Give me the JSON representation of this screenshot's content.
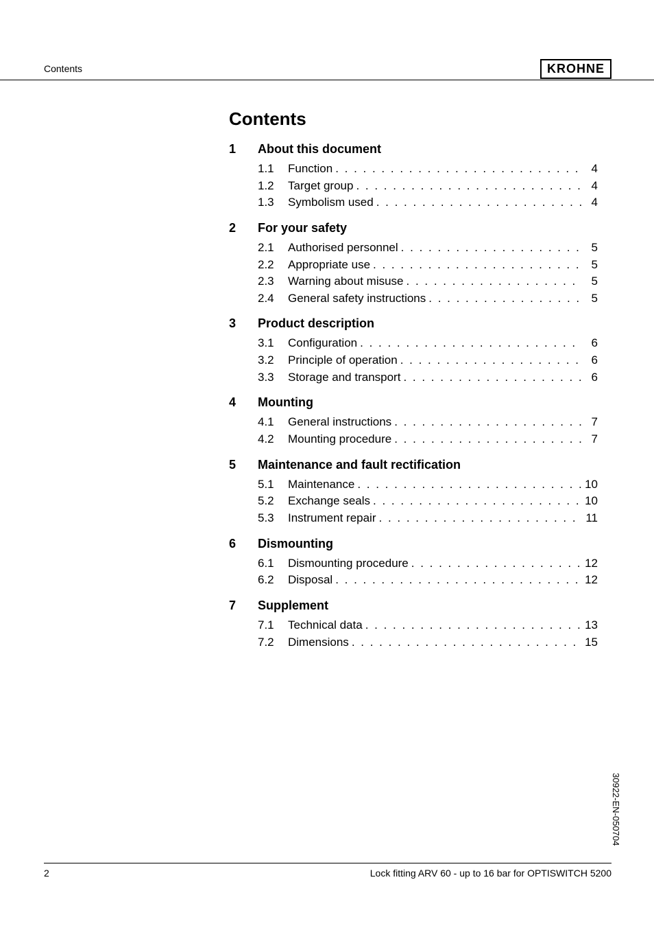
{
  "header": {
    "left": "Contents",
    "logo": "KROHNE"
  },
  "title": "Contents",
  "sections": [
    {
      "num": "1",
      "title": "About this document",
      "items": [
        {
          "num": "1.1",
          "label": "Function",
          "page": "4"
        },
        {
          "num": "1.2",
          "label": "Target group",
          "page": "4"
        },
        {
          "num": "1.3",
          "label": "Symbolism used",
          "page": "4"
        }
      ]
    },
    {
      "num": "2",
      "title": "For your safety",
      "items": [
        {
          "num": "2.1",
          "label": "Authorised personnel",
          "page": "5"
        },
        {
          "num": "2.2",
          "label": "Appropriate use",
          "page": "5"
        },
        {
          "num": "2.3",
          "label": "Warning about misuse",
          "page": "5"
        },
        {
          "num": "2.4",
          "label": "General safety instructions",
          "page": "5"
        }
      ]
    },
    {
      "num": "3",
      "title": "Product description",
      "items": [
        {
          "num": "3.1",
          "label": "Configuration",
          "page": "6"
        },
        {
          "num": "3.2",
          "label": "Principle of operation",
          "page": "6"
        },
        {
          "num": "3.3",
          "label": "Storage and transport",
          "page": "6"
        }
      ]
    },
    {
      "num": "4",
      "title": "Mounting",
      "items": [
        {
          "num": "4.1",
          "label": "General instructions",
          "page": "7"
        },
        {
          "num": "4.2",
          "label": "Mounting procedure",
          "page": "7"
        }
      ]
    },
    {
      "num": "5",
      "title": "Maintenance and fault rectification",
      "items": [
        {
          "num": "5.1",
          "label": "Maintenance",
          "page": "10"
        },
        {
          "num": "5.2",
          "label": "Exchange seals",
          "page": "10"
        },
        {
          "num": "5.3",
          "label": "Instrument repair",
          "page": "11"
        }
      ]
    },
    {
      "num": "6",
      "title": "Dismounting",
      "items": [
        {
          "num": "6.1",
          "label": "Dismounting procedure",
          "page": "12"
        },
        {
          "num": "6.2",
          "label": "Disposal",
          "page": "12"
        }
      ]
    },
    {
      "num": "7",
      "title": "Supplement",
      "items": [
        {
          "num": "7.1",
          "label": "Technical data",
          "page": "13"
        },
        {
          "num": "7.2",
          "label": "Dimensions",
          "page": "15"
        }
      ]
    }
  ],
  "footer": {
    "page_num": "2",
    "text": "Lock fitting ARV 60 - up to 16 bar for OPTISWITCH 5200"
  },
  "side_code": "30922-EN-050704",
  "style": {
    "page_bg": "#ffffff",
    "text_color": "#000000",
    "title_fontsize": 26,
    "section_fontsize": 18,
    "row_fontsize": 17,
    "header_fontsize": 14,
    "footer_fontsize": 14
  },
  "dot_leader": ". . . . . . . . . . . . . . . . . . . . . . . . . . . . . . . . . . . . . . . ."
}
